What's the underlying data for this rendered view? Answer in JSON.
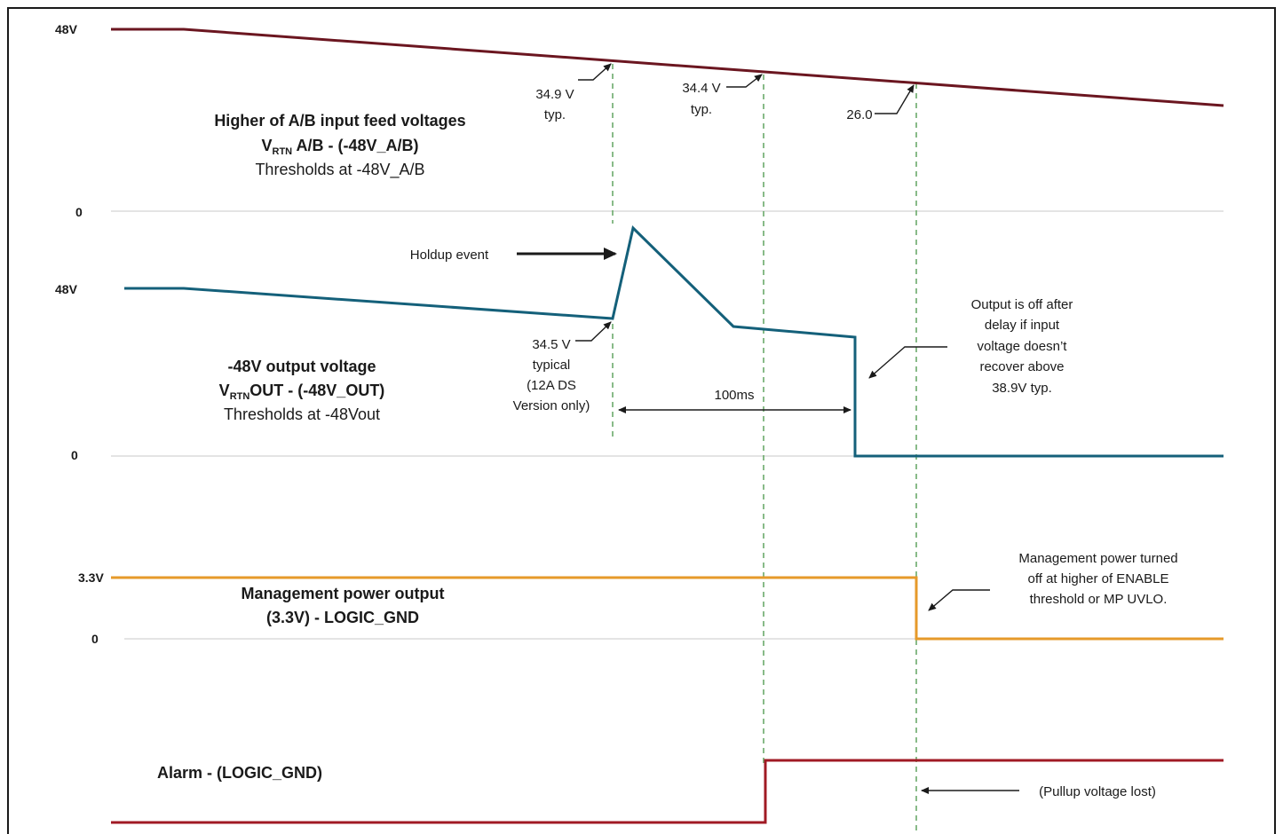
{
  "colors": {
    "input_trace": "#6b1620",
    "output_trace": "#14607a",
    "mgmt_trace": "#e69a2a",
    "alarm_trace": "#a01a24",
    "guide": "#6aaa6a",
    "baseline": "#c8c8c8",
    "frame": "#1a1a1a"
  },
  "axis_labels": {
    "in_top": "48V",
    "in_zero": "0",
    "out_top": "48V",
    "out_zero": "0",
    "mgmt_top": "3.3V",
    "mgmt_zero": "0"
  },
  "titles": {
    "input_line1": "Higher of A/B input feed voltages",
    "input_line2_v": "V",
    "input_line2_sub": "RTN",
    "input_line2_rest": " A/B - (-48V_A/B)",
    "input_line3": "Thresholds at -48V_A/B",
    "output_line1": "-48V output voltage",
    "output_line2_v": "V",
    "output_line2_sub": "RTN",
    "output_line2_rest": "OUT - (-48V_OUT)",
    "output_line3": "Thresholds at -48Vout",
    "mgmt_line1": "Management power output",
    "mgmt_line2": "(3.3V) - LOGIC_GND",
    "alarm": "Alarm - (LOGIC_GND)"
  },
  "annotations": {
    "t1_line1": "34.9 V",
    "t1_line2": "typ.",
    "t2_line1": "34.4 V",
    "t2_line2": "typ.",
    "t3": "26.0",
    "holdup": "Holdup event",
    "out_thr_1": "34.5 V",
    "out_thr_2": "typical",
    "out_thr_3": "(12A DS",
    "out_thr_4": "Version only)",
    "delay": "100ms",
    "off_1": "Output is off after",
    "off_2": "delay if input",
    "off_3": "voltage doesn’t",
    "off_4": "recover above",
    "off_5": "38.9V typ.",
    "mgmt_1": "Management power turned",
    "mgmt_2": "off at higher of ENABLE",
    "mgmt_3": "threshold or MP UVLO.",
    "pullup": "(Pullup voltage lost)"
  }
}
